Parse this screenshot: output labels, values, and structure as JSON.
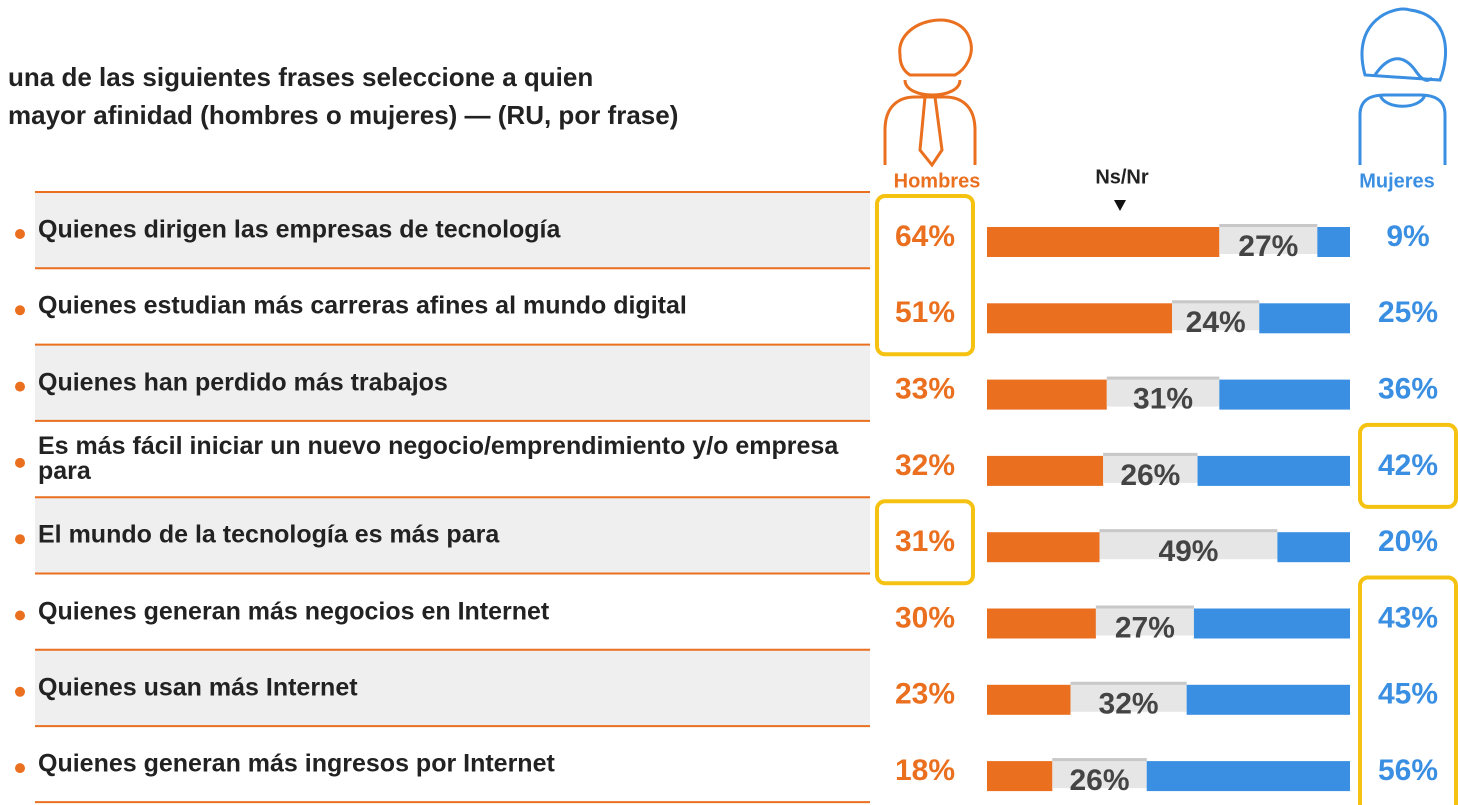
{
  "chart_data": {
    "type": "stacked-hbar",
    "title_lines": [
      "una de las siguientes frases seleccione a quien",
      "mayor afinidad (hombres o mujeres) — (RU, por frase)"
    ],
    "categories": [
      "Quienes dirigen las empresas de tecnología",
      "Quienes estudian más carreras afines al mundo digital",
      "Quienes han perdido más trabajos",
      "Es más fácil iniciar un nuevo negocio/emprendimiento y/o empresa para",
      "El mundo de la tecnología es más para",
      "Quienes generan más negocios en Internet",
      "Quienes usan más Internet",
      "Quienes generan más ingresos por Internet"
    ],
    "series": [
      {
        "name": "Hombres",
        "color": "#ea6f1f",
        "values": [
          64,
          51,
          33,
          32,
          31,
          30,
          23,
          18
        ],
        "value_labels": [
          "64%",
          "51%",
          "33%",
          "32%",
          "31%",
          "30%",
          "23%",
          "18%"
        ],
        "highlight": [
          true,
          true,
          false,
          false,
          true,
          false,
          false,
          false
        ]
      },
      {
        "name": "Ns/Nr",
        "color": "#e6e6e6",
        "values": [
          27,
          24,
          31,
          26,
          49,
          27,
          32,
          26
        ],
        "value_labels": [
          "27%",
          "24%",
          "31%",
          "26%",
          "49%",
          "27%",
          "32%",
          "26%"
        ]
      },
      {
        "name": "Mujeres",
        "color": "#3a8fe2",
        "values": [
          9,
          25,
          36,
          42,
          20,
          43,
          45,
          56
        ],
        "value_labels": [
          "9%",
          "25%",
          "36%",
          "42%",
          "20%",
          "43%",
          "45%",
          "56%"
        ],
        "highlight": [
          false,
          false,
          false,
          true,
          false,
          true,
          true,
          true
        ]
      }
    ],
    "highlight_color": "#f5c211"
  }
}
